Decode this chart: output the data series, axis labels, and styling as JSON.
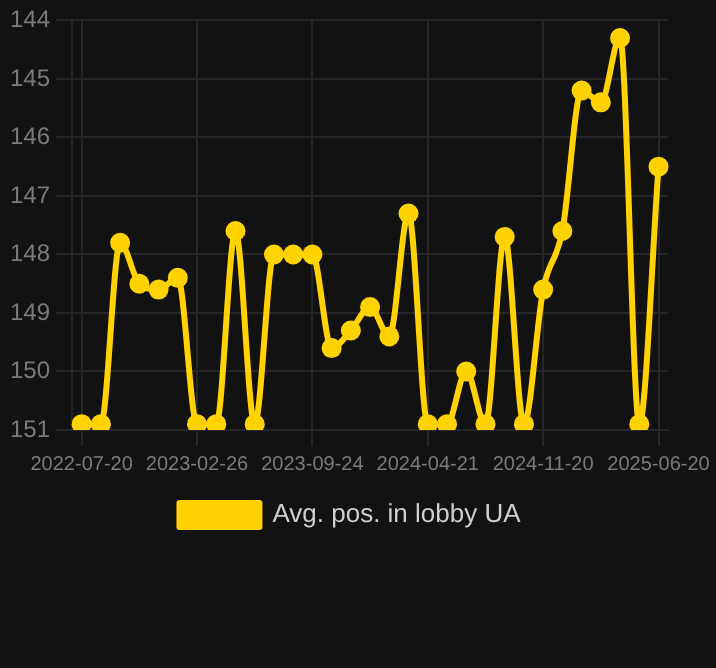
{
  "chart_data": {
    "type": "line",
    "categories": [
      "2022-07-20",
      null,
      null,
      null,
      null,
      null,
      "2023-02-26",
      null,
      null,
      null,
      null,
      null,
      "2023-09-24",
      null,
      null,
      null,
      null,
      null,
      "2024-04-21",
      null,
      null,
      null,
      null,
      null,
      "2024-11-20",
      null,
      null,
      null,
      null,
      null,
      "2025-06-20"
    ],
    "series": [
      {
        "name": "Avg. pos. in lobby UA",
        "color": "#ffd200",
        "values": [
          150.9,
          150.9,
          147.8,
          148.5,
          148.6,
          148.4,
          150.9,
          150.9,
          147.6,
          150.9,
          148.0,
          148.0,
          148.0,
          149.6,
          149.3,
          148.9,
          149.4,
          147.3,
          150.9,
          150.9,
          150.0,
          150.9,
          147.7,
          150.9,
          148.6,
          147.6,
          145.2,
          145.4,
          144.3,
          150.9,
          146.5
        ]
      }
    ],
    "ylim": [
      151,
      144
    ],
    "yticks": [
      151,
      150,
      149,
      148,
      147,
      146,
      145,
      144
    ],
    "grid": true,
    "legend": "bottom",
    "marker": "circle",
    "line_style": "solid"
  }
}
